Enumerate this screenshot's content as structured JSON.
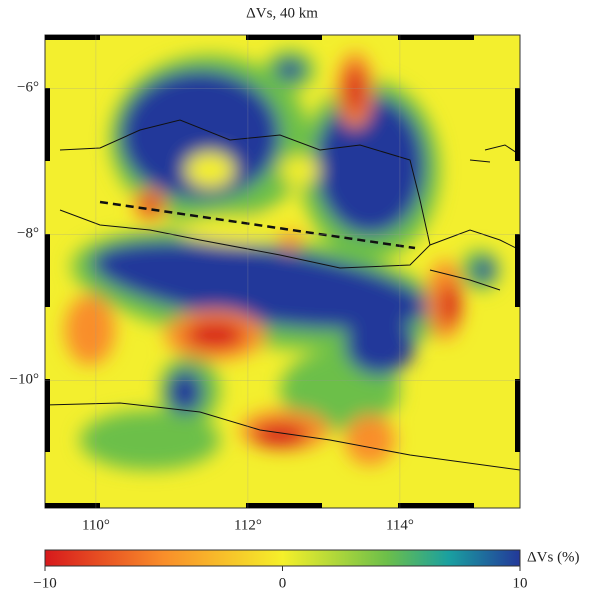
{
  "map": {
    "title": "ΔVs, 40 km",
    "xlim": [
      109.33,
      115.58
    ],
    "ylim": [
      -11.75,
      -5.27
    ],
    "xticks": [
      {
        "value": 110,
        "label": "110°"
      },
      {
        "value": 112,
        "label": "112°"
      },
      {
        "value": 114,
        "label": "114°"
      }
    ],
    "yticks": [
      {
        "value": -6,
        "label": "−6°"
      },
      {
        "value": -8,
        "label": "−8°"
      },
      {
        "value": -10,
        "label": "−10°"
      }
    ],
    "colorbar": {
      "label": "ΔVs (%)",
      "lim": [
        -10,
        10
      ],
      "ticks": [
        {
          "value": -10,
          "label": "−10"
        },
        0,
        10
      ]
    }
  }
}
